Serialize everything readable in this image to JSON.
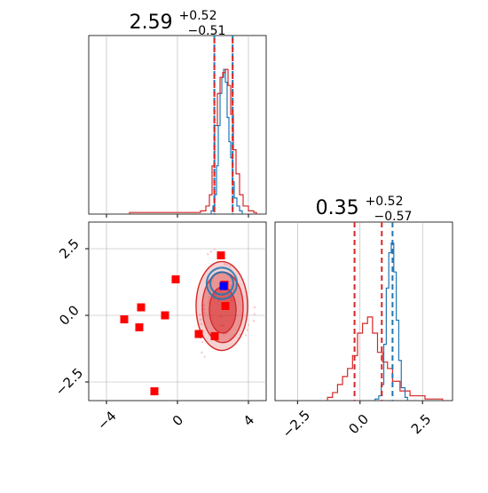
{
  "chart_data": {
    "type": "corner",
    "colors": {
      "red": "#d62728",
      "blue": "#1f77b4",
      "red_marker": "#ff0000",
      "blue_marker": "#0000ff",
      "grid": "#b0b0b0"
    },
    "panels": {
      "hist_x": {
        "title_value": "2.59",
        "title_plus": "+0.52",
        "title_minus": "−0.51",
        "xlim": [
          -5,
          5
        ],
        "xticks": [
          -4,
          0,
          4
        ],
        "quantile_lines": [
          2.08,
          2.59,
          3.11
        ],
        "red_hist": [
          [
            -2.7,
            0.01
          ],
          [
            1.3,
            0.02
          ],
          [
            1.6,
            0.05
          ],
          [
            1.8,
            0.12
          ],
          [
            1.95,
            0.3
          ],
          [
            2.1,
            0.55
          ],
          [
            2.25,
            0.75
          ],
          [
            2.4,
            0.85
          ],
          [
            2.55,
            0.88
          ],
          [
            2.7,
            0.9
          ],
          [
            2.85,
            0.8
          ],
          [
            3.0,
            0.62
          ],
          [
            3.15,
            0.4
          ],
          [
            3.3,
            0.25
          ],
          [
            3.5,
            0.12
          ],
          [
            3.7,
            0.05
          ],
          [
            4.0,
            0.02
          ],
          [
            4.3,
            0.01
          ]
        ],
        "blue_hist": [
          [
            1.9,
            0.02
          ],
          [
            2.0,
            0.05
          ],
          [
            2.1,
            0.12
          ],
          [
            2.2,
            0.3
          ],
          [
            2.3,
            0.55
          ],
          [
            2.4,
            0.75
          ],
          [
            2.5,
            0.85
          ],
          [
            2.6,
            0.9
          ],
          [
            2.7,
            0.82
          ],
          [
            2.8,
            0.6
          ],
          [
            2.9,
            0.45
          ],
          [
            3.0,
            0.35
          ],
          [
            3.1,
            0.2
          ],
          [
            3.2,
            0.1
          ],
          [
            3.35,
            0.05
          ],
          [
            3.5,
            0.02
          ]
        ]
      },
      "scatter": {
        "xlim": [
          -5,
          5
        ],
        "ylim": [
          -3.2,
          3.5
        ],
        "xticks": [
          -4,
          0,
          4
        ],
        "yticks": [
          -2.5,
          0.0,
          2.5
        ],
        "ytick_labels": [
          "−2.5",
          "0.0",
          "2.5"
        ],
        "xtick_labels": [
          "−4",
          "0",
          "4"
        ],
        "red_points": [
          [
            -3.0,
            -0.15
          ],
          [
            -2.05,
            0.3
          ],
          [
            -2.15,
            -0.45
          ],
          [
            -0.7,
            0.0
          ],
          [
            -0.1,
            1.35
          ],
          [
            -1.3,
            -2.85
          ],
          [
            1.2,
            -0.7
          ],
          [
            2.1,
            -0.78
          ],
          [
            2.45,
            2.25
          ],
          [
            2.7,
            0.35
          ],
          [
            2.65,
            1.15
          ]
        ],
        "blue_point": [
          2.6,
          1.1
        ],
        "red_contours": [
          {
            "cx": 2.55,
            "cy": 0.2,
            "rx": 0.75,
            "ry": 0.75,
            "fill": 0.85
          },
          {
            "cx": 2.55,
            "cy": 0.3,
            "rx": 1.15,
            "ry": 1.15,
            "fill": 0.6
          },
          {
            "cx": 2.5,
            "cy": 0.35,
            "rx": 1.45,
            "ry": 1.45,
            "fill": 0.35
          }
        ],
        "blue_contours": [
          {
            "cx": 2.5,
            "cy": 1.2,
            "rx": 0.65,
            "ry": 0.3
          },
          {
            "cx": 2.5,
            "cy": 1.2,
            "rx": 0.85,
            "ry": 0.42
          }
        ]
      },
      "hist_y": {
        "title_value": "0.35",
        "title_plus": "+0.52",
        "title_minus": "−0.57",
        "xlim": [
          -3.4,
          3.7
        ],
        "xticks": [
          -2.5,
          0.0,
          2.5
        ],
        "xtick_labels": [
          "−2.5",
          "0.0",
          "2.5"
        ],
        "red_quantile_lines": [
          -0.22,
          0.87
        ],
        "blue_quantile_lines": [
          1.3
        ],
        "red_hist": [
          [
            -1.3,
            0.02
          ],
          [
            -1.1,
            0.05
          ],
          [
            -0.9,
            0.1
          ],
          [
            -0.7,
            0.15
          ],
          [
            -0.5,
            0.2
          ],
          [
            -0.3,
            0.28
          ],
          [
            -0.1,
            0.42
          ],
          [
            0.1,
            0.48
          ],
          [
            0.3,
            0.52
          ],
          [
            0.5,
            0.42
          ],
          [
            0.7,
            0.3
          ],
          [
            0.9,
            0.24
          ],
          [
            1.1,
            0.2
          ],
          [
            1.3,
            0.12
          ],
          [
            1.6,
            0.06
          ],
          [
            2.0,
            0.03
          ],
          [
            2.6,
            0.01
          ],
          [
            3.2,
            0.01
          ]
        ],
        "blue_hist": [
          [
            0.6,
            0.01
          ],
          [
            0.75,
            0.03
          ],
          [
            0.85,
            0.1
          ],
          [
            0.95,
            0.35
          ],
          [
            1.05,
            0.7
          ],
          [
            1.15,
            0.92
          ],
          [
            1.25,
            0.98
          ],
          [
            1.35,
            0.8
          ],
          [
            1.45,
            0.5
          ],
          [
            1.55,
            0.25
          ],
          [
            1.65,
            0.08
          ],
          [
            1.8,
            0.02
          ]
        ]
      }
    }
  }
}
